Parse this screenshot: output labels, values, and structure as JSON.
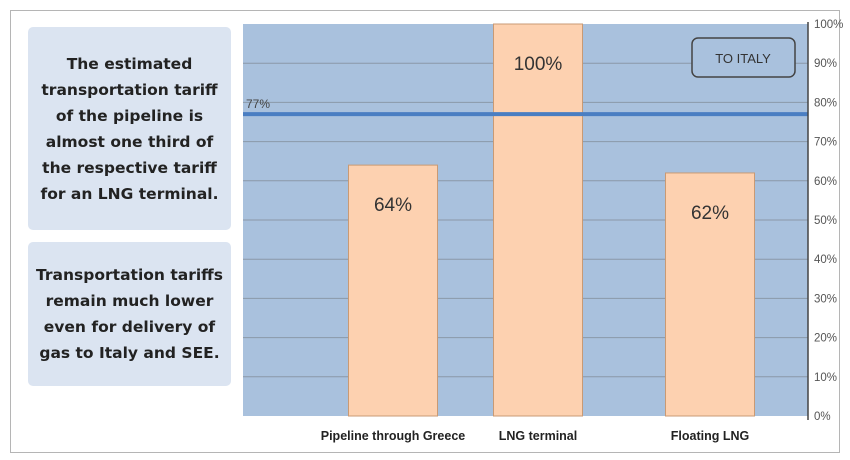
{
  "notes": [
    "The estimated transportation tariff of the pipeline is almost one third of the respective tariff for an LNG terminal.",
    "Transportation tariffs remain much lower even for delivery of gas to Italy and SEE."
  ],
  "colors": {
    "plot_bg": "#a9c1dd",
    "bar_fill": "#fdd1b0",
    "bar_stroke": "#c99a74",
    "reference_line": "#4a7ec2",
    "grid": "#8a98a8",
    "note_bg": "#dbe4f1"
  },
  "chart_data": {
    "type": "bar",
    "categories": [
      "Pipeline through Greece",
      "LNG terminal",
      "Floating LNG"
    ],
    "values": [
      64,
      100,
      62
    ],
    "data_labels": [
      "64%",
      "100%",
      "62%"
    ],
    "ylim": [
      0,
      100
    ],
    "yticks": [
      0,
      10,
      20,
      30,
      40,
      50,
      60,
      70,
      80,
      90,
      100
    ],
    "ytick_labels": [
      "0%",
      "10%",
      "20%",
      "30%",
      "40%",
      "50%",
      "60%",
      "70%",
      "80%",
      "90%",
      "100%"
    ],
    "reference_line": {
      "value": 77,
      "label": "77%"
    },
    "annotation": "TO ITALY",
    "grid": true,
    "title": "",
    "xlabel": "",
    "ylabel": ""
  }
}
